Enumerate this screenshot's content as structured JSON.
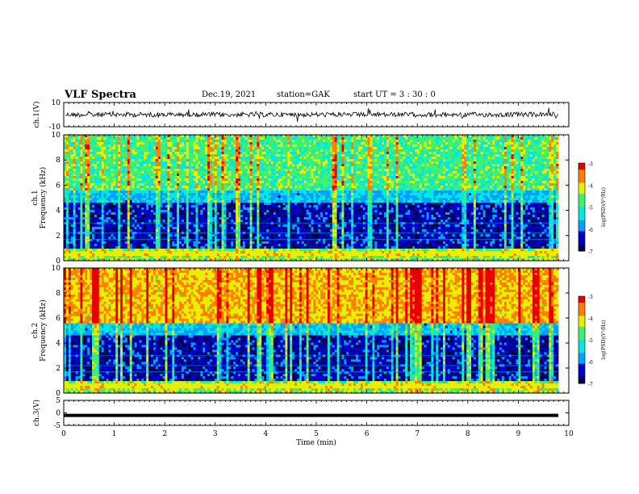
{
  "header": {
    "title": "VLF Spectra",
    "date": "Dec.19, 2021",
    "station": "station=GAK",
    "start_ut": "start  UT =   3 : 30 : 0"
  },
  "colors": {
    "background": "#ffffff",
    "axis": "#000000",
    "colormap": [
      "#000050",
      "#0000c8",
      "#00a0ff",
      "#00e8e0",
      "#40f070",
      "#e8f000",
      "#ff8000",
      "#e80000",
      "#ffffff"
    ]
  },
  "chart_data": [
    {
      "type": "line",
      "name": "ch1-waveform",
      "ylabel": "ch.1(V)",
      "ylim": [
        -10,
        10
      ],
      "yticks": [
        "10",
        "-10"
      ],
      "xlim": [
        0,
        10
      ],
      "approx_level": 0,
      "approx_noise_amplitude": 3
    },
    {
      "type": "heatmap",
      "name": "ch1-spectrogram",
      "ylabel": "ch.1\nFrequency (kHz)",
      "ylim": [
        0,
        10
      ],
      "yticks": [
        "0",
        "2",
        "4",
        "6",
        "8",
        "10"
      ],
      "xlim": [
        0,
        9.85
      ],
      "colorbar": {
        "label": "log(PSD)(V²/Hz)",
        "range": [
          -7,
          -3
        ],
        "ticks": [
          "-3",
          "-4",
          "-5",
          "-6",
          "-7"
        ]
      },
      "bands": [
        {
          "from_khz": 0,
          "to_khz": 1,
          "level": "high"
        },
        {
          "from_khz": 1,
          "to_khz": 5,
          "level": "low"
        },
        {
          "from_khz": 5,
          "to_khz": 10,
          "level": "high"
        }
      ]
    },
    {
      "type": "heatmap",
      "name": "ch2-spectrogram",
      "ylabel": "ch.2\nFrequency (kHz)",
      "ylim": [
        0,
        10
      ],
      "yticks": [
        "0",
        "2",
        "4",
        "6",
        "8",
        "10"
      ],
      "xlim": [
        0,
        9.85
      ],
      "colorbar": {
        "label": "log(PSD)(V²/Hz)",
        "range": [
          -7,
          -3
        ],
        "ticks": [
          "-3",
          "-4",
          "-5",
          "-6",
          "-7"
        ]
      },
      "bands": [
        {
          "from_khz": 0,
          "to_khz": 1,
          "level": "high"
        },
        {
          "from_khz": 1,
          "to_khz": 4.5,
          "level": "low"
        },
        {
          "from_khz": 4.5,
          "to_khz": 10,
          "level": "very-high"
        }
      ]
    },
    {
      "type": "line",
      "name": "ch3-signal",
      "ylabel": "ch.3(V)",
      "ylim": [
        -5,
        5
      ],
      "yticks": [
        "5",
        "0",
        "-5"
      ],
      "xlim": [
        0,
        9.85
      ],
      "approx_level": -1
    }
  ],
  "xaxis": {
    "label": "Time (min)",
    "ticks": [
      "0",
      "1",
      "2",
      "3",
      "4",
      "5",
      "6",
      "7",
      "8",
      "9",
      "10"
    ],
    "range": [
      0,
      10
    ]
  }
}
